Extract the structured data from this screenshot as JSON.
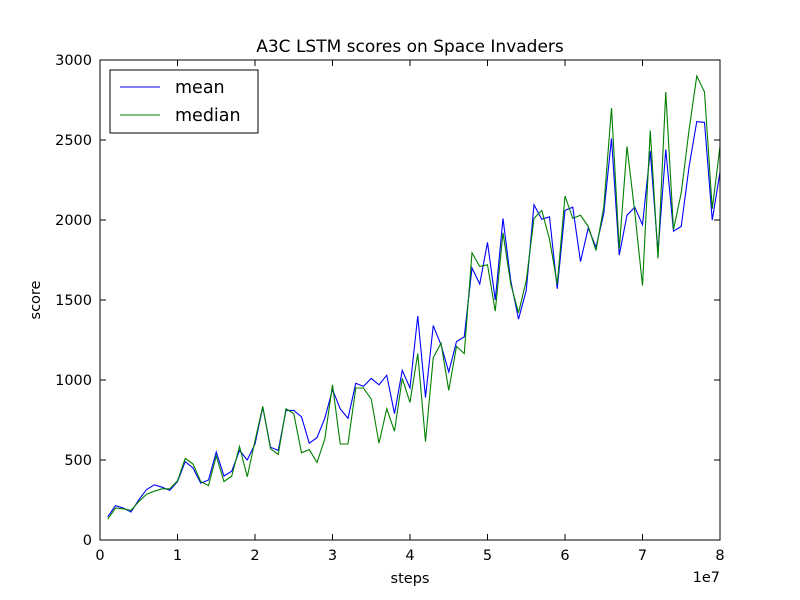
{
  "chart_data": {
    "type": "line",
    "title": "A3C LSTM scores on Space Invaders",
    "xlabel": "steps",
    "ylabel": "score",
    "x_scale_label": "1e7",
    "xlim": [
      0,
      80000000
    ],
    "ylim": [
      0,
      3000
    ],
    "x_ticks": [
      0,
      10000000,
      20000000,
      30000000,
      40000000,
      50000000,
      60000000,
      70000000,
      80000000
    ],
    "x_tick_labels": [
      "0",
      "1",
      "2",
      "3",
      "4",
      "5",
      "6",
      "7",
      "8"
    ],
    "y_ticks": [
      0,
      500,
      1000,
      1500,
      2000,
      2500,
      3000
    ],
    "y_tick_labels": [
      "0",
      "500",
      "1000",
      "1500",
      "2000",
      "2500",
      "3000"
    ],
    "grid": false,
    "legend_position": "top-left",
    "x": [
      1000000,
      2000000,
      3000000,
      4000000,
      5000000,
      6000000,
      7000000,
      8000000,
      9000000,
      10000000,
      11000000,
      12000000,
      13000000,
      14000000,
      15000000,
      16000000,
      17000000,
      18000000,
      19000000,
      20000000,
      21000000,
      22000000,
      23000000,
      24000000,
      25000000,
      26000000,
      27000000,
      28000000,
      29000000,
      30000000,
      31000000,
      32000000,
      33000000,
      34000000,
      35000000,
      36000000,
      37000000,
      38000000,
      39000000,
      40000000,
      41000000,
      42000000,
      43000000,
      44000000,
      45000000,
      46000000,
      47000000,
      48000000,
      49000000,
      50000000,
      51000000,
      52000000,
      53000000,
      54000000,
      55000000,
      56000000,
      57000000,
      58000000,
      59000000,
      60000000,
      61000000,
      62000000,
      63000000,
      64000000,
      65000000,
      66000000,
      67000000,
      68000000,
      69000000,
      70000000,
      71000000,
      72000000,
      73000000,
      74000000,
      75000000,
      76000000,
      77000000,
      78000000,
      79000000,
      80000000
    ],
    "series": [
      {
        "name": "mean",
        "color": "#0000ff",
        "values": [
          145,
          215,
          200,
          175,
          250,
          315,
          345,
          330,
          310,
          365,
          490,
          450,
          355,
          375,
          550,
          400,
          430,
          560,
          500,
          600,
          830,
          580,
          560,
          810,
          810,
          770,
          605,
          640,
          760,
          940,
          820,
          760,
          980,
          960,
          1010,
          970,
          1030,
          790,
          1060,
          950,
          1400,
          890,
          1340,
          1220,
          1050,
          1240,
          1270,
          1700,
          1600,
          1860,
          1500,
          2010,
          1620,
          1380,
          1560,
          2095,
          2005,
          2020,
          1570,
          2060,
          2080,
          1740,
          1950,
          1830,
          2040,
          2510,
          1780,
          2030,
          2080,
          1970,
          2430,
          1800,
          2440,
          1930,
          1960,
          2330,
          2615,
          2610,
          2000,
          2300
        ]
      },
      {
        "name": "median",
        "color": "#008000",
        "values": [
          130,
          200,
          195,
          185,
          240,
          285,
          305,
          320,
          320,
          370,
          510,
          475,
          365,
          340,
          525,
          365,
          400,
          585,
          395,
          620,
          835,
          570,
          535,
          820,
          790,
          545,
          565,
          485,
          630,
          970,
          600,
          600,
          950,
          950,
          880,
          605,
          820,
          680,
          1010,
          860,
          1165,
          615,
          1140,
          1230,
          935,
          1210,
          1165,
          1795,
          1710,
          1720,
          1430,
          1920,
          1600,
          1420,
          1620,
          2010,
          2060,
          1880,
          1600,
          2150,
          2010,
          2030,
          1960,
          1810,
          2080,
          2700,
          1820,
          2460,
          2050,
          1590,
          2560,
          1760,
          2800,
          1940,
          2170,
          2560,
          2900,
          2800,
          2070,
          2460
        ]
      }
    ]
  }
}
